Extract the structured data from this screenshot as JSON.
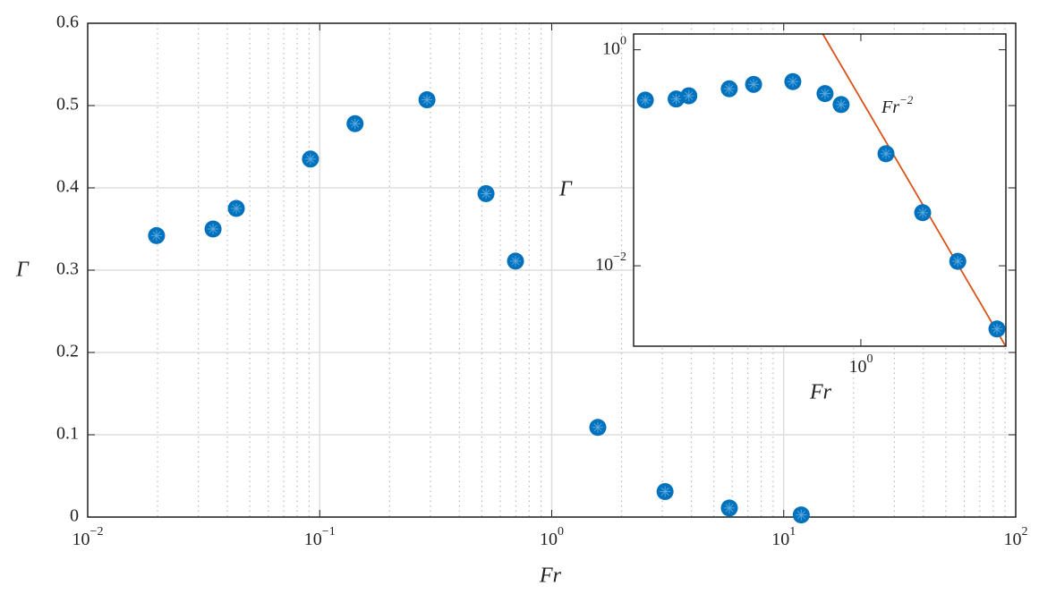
{
  "chart_data": {
    "type": "scatter",
    "x_label": "Fr",
    "y_label": "Γ",
    "x": [
      0.0198,
      0.0347,
      0.0437,
      0.0912,
      0.142,
      0.29,
      0.521,
      0.698,
      1.58,
      3.08,
      5.83,
      11.9
    ],
    "values": [
      0.342,
      0.35,
      0.375,
      0.435,
      0.478,
      0.507,
      0.393,
      0.311,
      0.109,
      0.031,
      0.011,
      0.0026
    ],
    "color": "#0072bd",
    "x_log": true,
    "xlim": [
      0.01,
      100
    ],
    "xticks": [
      {
        "value": 0.01,
        "label": "10",
        "exponent": "−2"
      },
      {
        "value": 0.1,
        "label": "10",
        "exponent": "−1"
      },
      {
        "value": 1,
        "label": "10",
        "exponent": "0"
      },
      {
        "value": 10,
        "label": "10",
        "exponent": "1"
      },
      {
        "value": 100,
        "label": "10",
        "exponent": "2"
      }
    ],
    "ylim": [
      0,
      0.6
    ],
    "yticks": [
      0,
      0.1,
      0.2,
      0.3,
      0.4,
      0.5,
      0.6
    ],
    "grid": true,
    "minor_grid": true,
    "inset": {
      "type": "scatter",
      "x_label": "Fr",
      "y_label": "Γ",
      "x_log": true,
      "y_log": true,
      "xlim": [
        0.016,
        14
      ],
      "ylim": [
        0.0018,
        1.4
      ],
      "xticks": [
        {
          "value": 1,
          "label": "10",
          "exponent": "0"
        }
      ],
      "yticks": [
        {
          "value": 0.01,
          "label": "10",
          "exponent": "−2"
        },
        {
          "value": 1,
          "label": "10",
          "exponent": "0"
        }
      ],
      "fit": {
        "label": "Fr",
        "exponent": {
          "value": -2,
          "label": "−2"
        },
        "coefficient": 0.35,
        "color": "#d95319"
      }
    }
  }
}
